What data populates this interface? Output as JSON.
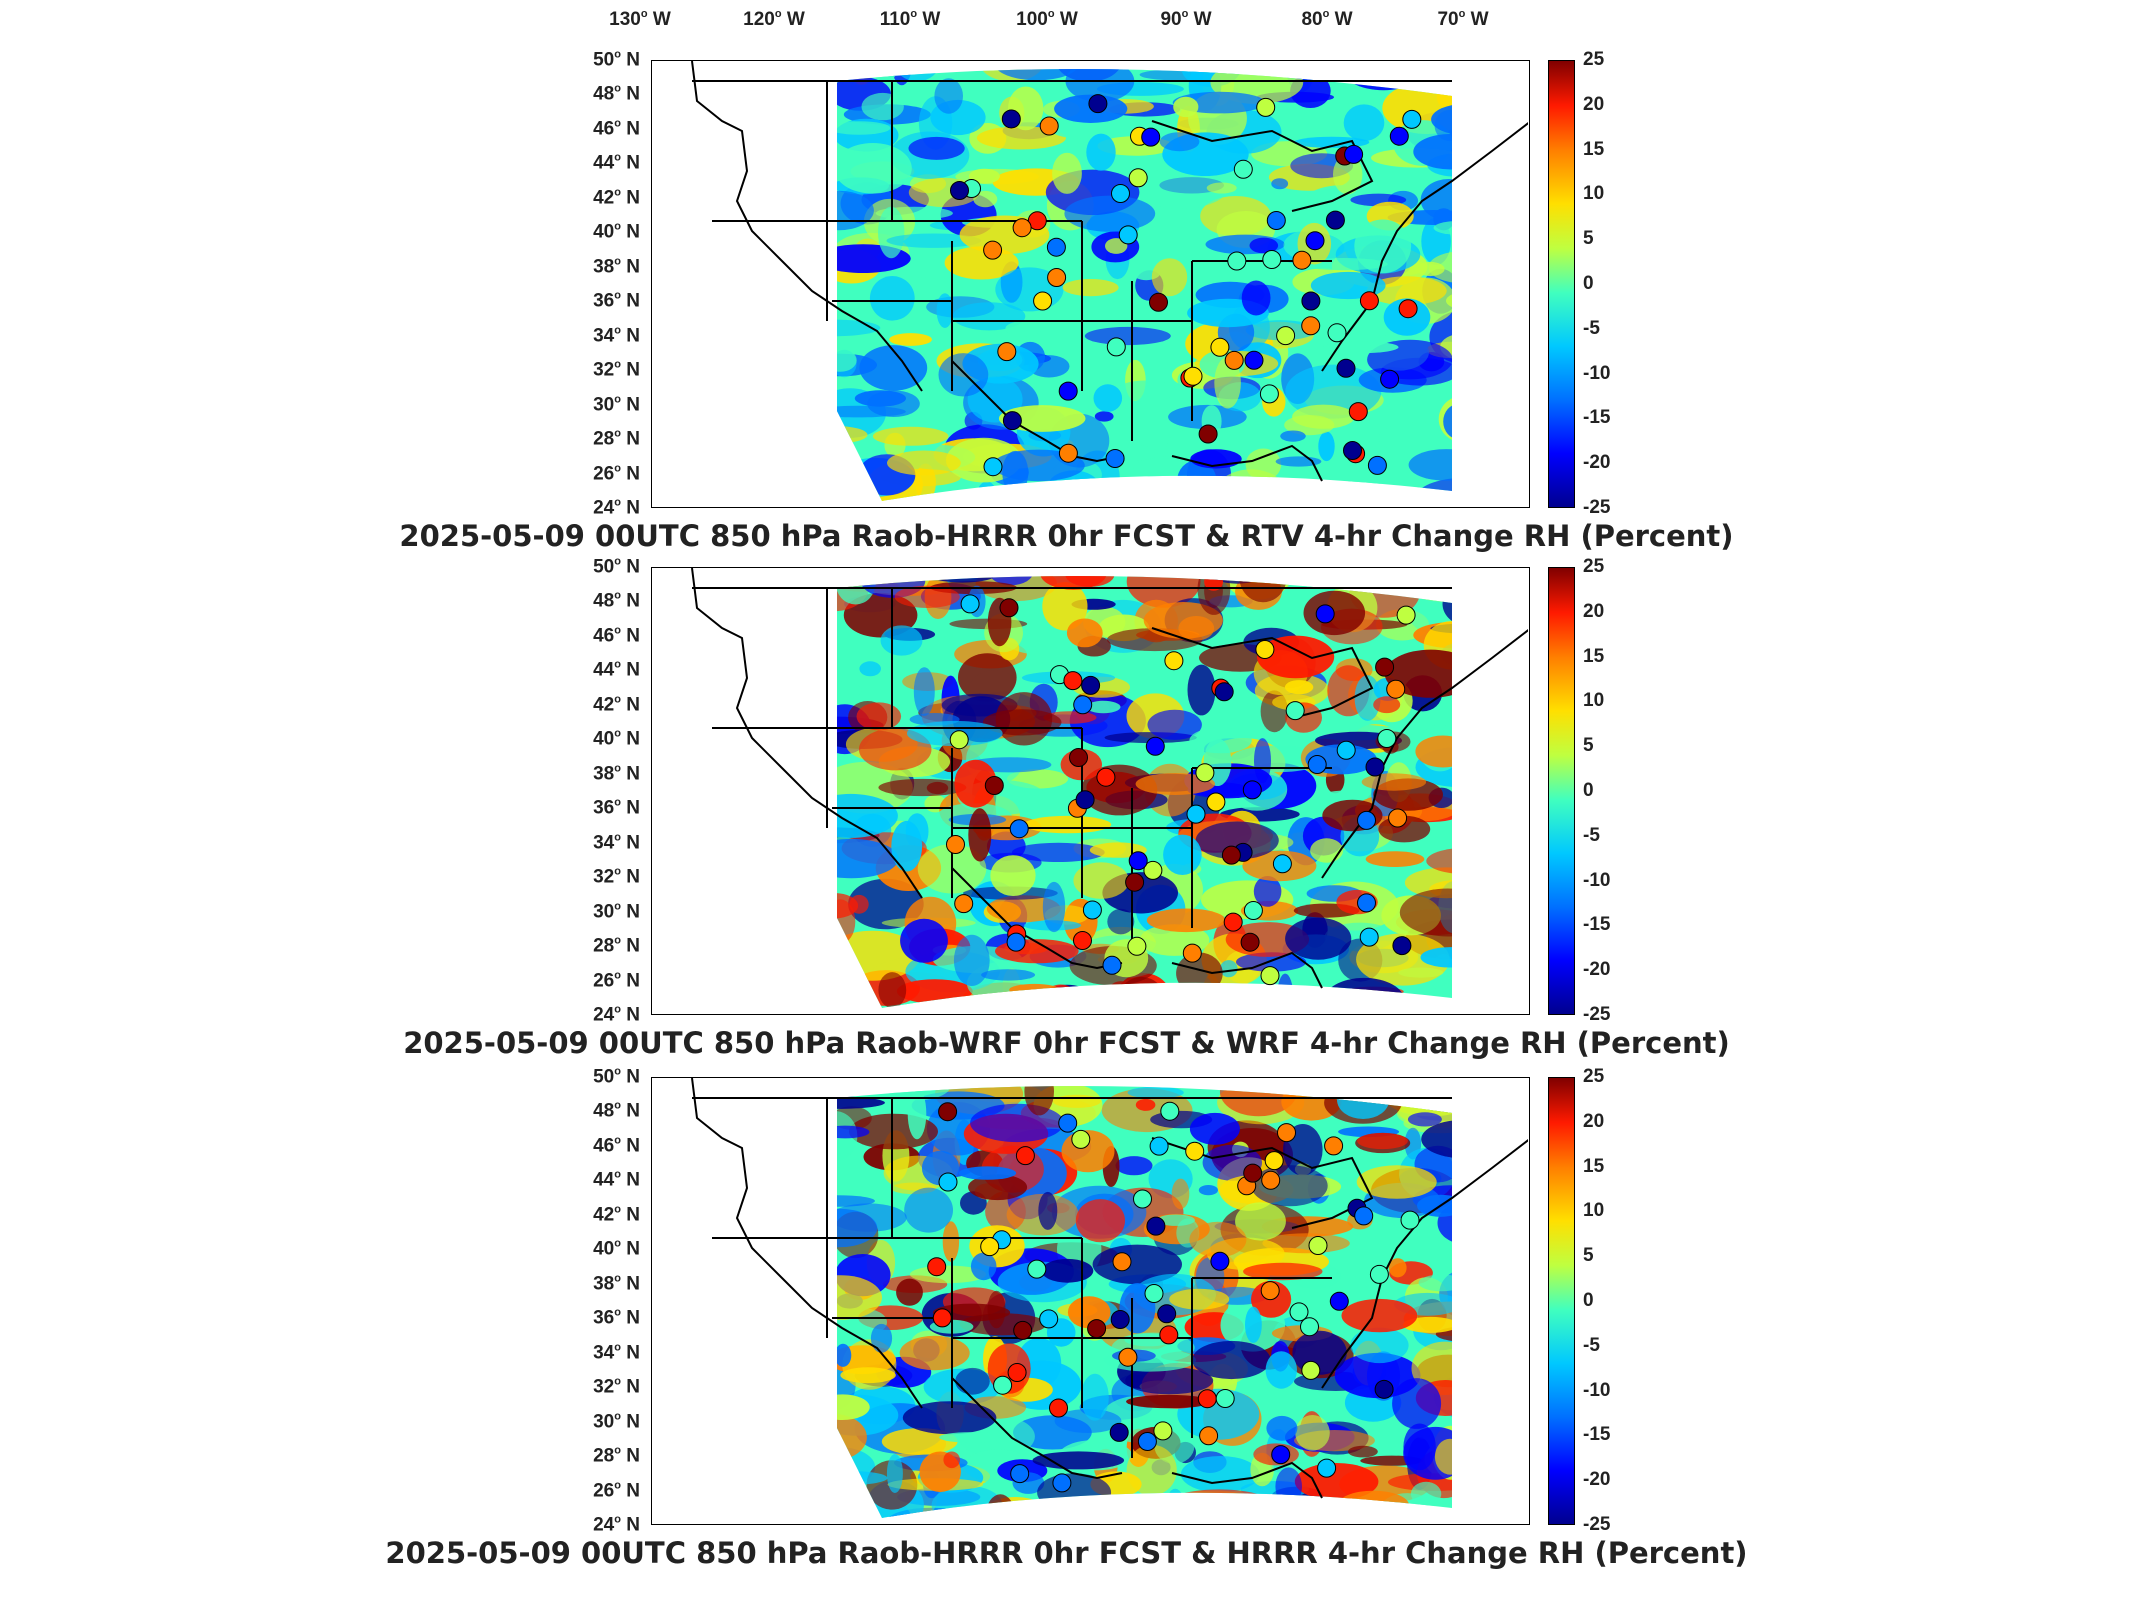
{
  "longitude_labels": [
    "130",
    "120",
    "110",
    "100",
    "90",
    "80",
    "70"
  ],
  "longitude_suffix": "W",
  "latitude_labels": [
    "50",
    "48",
    "46",
    "44",
    "42",
    "40",
    "38",
    "36",
    "34",
    "32",
    "30",
    "28",
    "26",
    "24"
  ],
  "latitude_suffix": "N",
  "colorbar": {
    "min": -25,
    "max": 25,
    "ticks": [
      "25",
      "20",
      "15",
      "10",
      "5",
      "0",
      "-5",
      "-10",
      "-15",
      "-20",
      "-25"
    ],
    "colors": [
      "#00008f",
      "#0000ff",
      "#0070ff",
      "#00c8ff",
      "#40ffbf",
      "#bfff40",
      "#ffdf00",
      "#ff7f00",
      "#ff1a00",
      "#800000"
    ]
  },
  "panels": [
    {
      "caption": "2025-05-09 00UTC 850 hPa Raob-HRRR 0hr FCST & RTV 4-hr Change RH (Percent)"
    },
    {
      "caption": "2025-05-09 00UTC 850 hPa Raob-WRF 0hr FCST & WRF 4-hr Change RH (Percent)"
    },
    {
      "caption": "2025-05-09 00UTC 850 hPa Raob-HRRR 0hr FCST & HRRR 4-hr Change RH (Percent)"
    }
  ]
}
